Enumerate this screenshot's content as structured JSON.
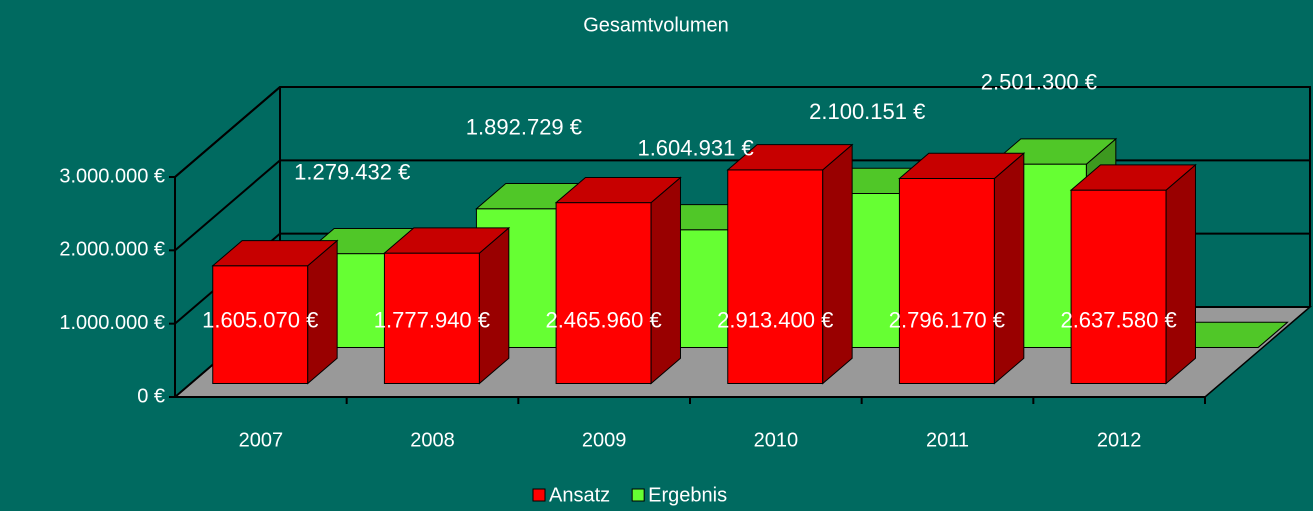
{
  "chart_data": {
    "type": "bar3d",
    "title": "Gesamtvolumen",
    "categories": [
      "2007",
      "2008",
      "2009",
      "2010",
      "2011",
      "2012"
    ],
    "series": [
      {
        "name": "Ansatz",
        "color": "#ff0000",
        "values": [
          1605070,
          1777940,
          2465960,
          2913400,
          2796170,
          2637580
        ],
        "value_labels": [
          "1.605.070 €",
          "1.777.940 €",
          "2.465.960 €",
          "2.913.400 €",
          "2.796.170 €",
          "2.637.580 €"
        ]
      },
      {
        "name": "Ergebnis",
        "color": "#66ff33",
        "values": [
          1279432,
          1892729,
          1604931,
          2100151,
          2501300,
          0
        ],
        "value_labels": [
          "1.279.432 €",
          "1.892.729 €",
          "1.604.931 €",
          "2.100.151 €",
          "2.501.300 €",
          null
        ]
      }
    ],
    "ylim": [
      0,
      3000000
    ],
    "yticks": [
      {
        "value": 0,
        "label": "0 €"
      },
      {
        "value": 1000000,
        "label": "1.000.000 €"
      },
      {
        "value": 2000000,
        "label": "2.000.000 €"
      },
      {
        "value": 3000000,
        "label": "3.000.000 €"
      }
    ],
    "grid": true,
    "legend": "bottom"
  }
}
